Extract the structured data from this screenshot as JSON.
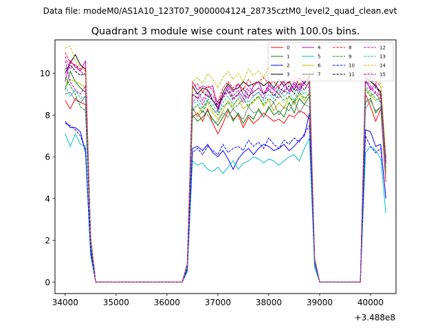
{
  "header": {
    "suptitle": "Data file: modeM0/AS1A10_123T07_9000004124_28735cztM0_level2_quad_clean.evt"
  },
  "chart_data": {
    "type": "line",
    "title": "Quadrant 3 module wise count rates with 100.0s bins.",
    "xlabel": "",
    "ylabel": "",
    "x_offset_label": "+3.488e8",
    "xlim": [
      33800,
      40500
    ],
    "ylim": [
      -0.55,
      11.6
    ],
    "xticks": [
      34000,
      35000,
      36000,
      37000,
      38000,
      39000,
      40000
    ],
    "yticks": [
      0,
      2,
      4,
      6,
      8,
      10
    ],
    "grid": false,
    "legend_position": "top-right",
    "x": [
      34000,
      34100,
      34200,
      34300,
      34400,
      34500,
      34600,
      34700,
      34800,
      34900,
      35000,
      35100,
      35200,
      35300,
      35400,
      35500,
      35600,
      35700,
      35800,
      35900,
      36000,
      36100,
      36200,
      36300,
      36400,
      36500,
      36600,
      36700,
      36800,
      36900,
      37000,
      37100,
      37200,
      37300,
      37400,
      37500,
      37600,
      37700,
      37800,
      37900,
      38000,
      38100,
      38200,
      38300,
      38400,
      38500,
      38600,
      38700,
      38800,
      38900,
      39000,
      39100,
      39200,
      39300,
      39400,
      39500,
      39600,
      39700,
      39800,
      39900,
      40000,
      40100,
      40200,
      40300
    ],
    "series": [
      {
        "name": "0",
        "color": "#ff0000",
        "dash": false,
        "values": [
          8.7,
          8.3,
          8.8,
          8.6,
          8.5,
          2.0,
          0,
          0,
          0,
          0,
          0,
          0,
          0,
          0,
          0,
          0,
          0,
          0,
          0,
          0,
          0,
          0,
          0,
          0,
          0.7,
          7.9,
          8.1,
          7.7,
          8.3,
          7.6,
          7.1,
          7.6,
          8.2,
          7.8,
          8.0,
          7.4,
          7.9,
          7.6,
          7.8,
          8.1,
          7.9,
          7.7,
          7.8,
          7.6,
          8.0,
          7.9,
          8.2,
          8.1,
          7.8,
          1.0,
          0,
          0,
          0,
          0,
          0,
          0,
          0,
          0,
          0,
          9.0,
          8.4,
          7.7,
          8.3,
          4.8
        ]
      },
      {
        "name": "1",
        "color": "#008000",
        "dash": false,
        "values": [
          9.2,
          10.1,
          9.6,
          9.3,
          9.1,
          1.9,
          0,
          0,
          0,
          0,
          0,
          0,
          0,
          0,
          0,
          0,
          0,
          0,
          0,
          0,
          0,
          0,
          0,
          0,
          0.8,
          8.0,
          7.7,
          7.9,
          8.2,
          7.8,
          7.5,
          7.9,
          8.3,
          7.7,
          8.1,
          7.6,
          8.0,
          7.8,
          8.3,
          7.9,
          8.4,
          8.0,
          8.2,
          7.9,
          8.6,
          8.1,
          8.8,
          8.5,
          8.9,
          1.0,
          0,
          0,
          0,
          0,
          0,
          0,
          0,
          0,
          0,
          8.6,
          8.8,
          8.1,
          8.4,
          5.3
        ]
      },
      {
        "name": "2",
        "color": "#0000ff",
        "dash": false,
        "values": [
          7.7,
          7.4,
          7.4,
          7.2,
          6.2,
          1.5,
          0,
          0,
          0,
          0,
          0,
          0,
          0,
          0,
          0,
          0,
          0,
          0,
          0,
          0,
          0,
          0,
          0,
          0,
          0.6,
          6.4,
          6.5,
          6.3,
          6.6,
          6.2,
          6.0,
          6.3,
          5.9,
          5.4,
          5.9,
          6.2,
          6.4,
          6.1,
          6.4,
          6.6,
          6.5,
          6.3,
          6.4,
          6.6,
          6.3,
          6.5,
          6.8,
          7.0,
          8.1,
          0.9,
          0,
          0,
          0,
          0,
          0,
          0,
          0,
          0,
          0,
          7.3,
          7.2,
          6.5,
          6.6,
          4.0
        ]
      },
      {
        "name": "3",
        "color": "#000000",
        "dash": false,
        "values": [
          10.0,
          10.5,
          10.9,
          10.4,
          10.2,
          2.1,
          0,
          0,
          0,
          0,
          0,
          0,
          0,
          0,
          0,
          0,
          0,
          0,
          0,
          0,
          0,
          0,
          0,
          0,
          0.9,
          9.4,
          9.0,
          9.3,
          9.2,
          8.7,
          8.3,
          9.1,
          9.5,
          9.2,
          9.3,
          9.6,
          9.4,
          9.5,
          9.6,
          9.4,
          9.6,
          9.3,
          9.7,
          9.4,
          9.6,
          9.2,
          9.8,
          9.5,
          9.9,
          1.1,
          0,
          0,
          0,
          0,
          0,
          0,
          0,
          0,
          0,
          9.8,
          9.6,
          9.4,
          9.1,
          5.8
        ]
      },
      {
        "name": "4",
        "color": "#bf00bf",
        "dash": false,
        "values": [
          9.6,
          10.6,
          10.3,
          10.1,
          10.6,
          2.1,
          0,
          0,
          0,
          0,
          0,
          0,
          0,
          0,
          0,
          0,
          0,
          0,
          0,
          0,
          0,
          0,
          0,
          0,
          0.9,
          9.6,
          9.2,
          9.4,
          9.3,
          9.4,
          8.2,
          8.9,
          9.4,
          9.1,
          9.5,
          9.0,
          8.8,
          9.4,
          9.6,
          9.0,
          9.4,
          9.2,
          9.4,
          9.6,
          9.1,
          9.5,
          9.2,
          9.6,
          9.7,
          1.1,
          0,
          0,
          0,
          0,
          0,
          0,
          0,
          0,
          0,
          9.7,
          9.2,
          9.5,
          8.9,
          5.7
        ]
      },
      {
        "name": "5",
        "color": "#00bfbf",
        "dash": false,
        "values": [
          7.1,
          6.5,
          7.1,
          6.6,
          6.5,
          1.3,
          0,
          0,
          0,
          0,
          0,
          0,
          0,
          0,
          0,
          0,
          0,
          0,
          0,
          0,
          0,
          0,
          0,
          0,
          0.5,
          5.8,
          5.6,
          5.7,
          5.4,
          5.3,
          5.5,
          5.2,
          5.5,
          5.8,
          5.4,
          5.7,
          5.8,
          6.0,
          5.9,
          5.7,
          5.9,
          5.8,
          5.6,
          5.8,
          6.0,
          6.1,
          5.8,
          6.4,
          6.9,
          0.7,
          0,
          0,
          0,
          0,
          0,
          0,
          0,
          0,
          0,
          6.2,
          6.5,
          6.3,
          5.9,
          3.3
        ]
      },
      {
        "name": "6",
        "color": "#bfbf00",
        "dash": false,
        "values": [
          9.3,
          9.7,
          9.6,
          9.5,
          9.3,
          2.0,
          0,
          0,
          0,
          0,
          0,
          0,
          0,
          0,
          0,
          0,
          0,
          0,
          0,
          0,
          0,
          0,
          0,
          0,
          0.8,
          8.3,
          8.0,
          8.4,
          8.6,
          8.1,
          7.8,
          8.2,
          8.7,
          8.4,
          8.8,
          8.3,
          8.5,
          8.6,
          8.9,
          8.4,
          8.7,
          8.2,
          8.6,
          8.3,
          8.9,
          8.5,
          9.0,
          8.7,
          9.1,
          1.0,
          0,
          0,
          0,
          0,
          0,
          0,
          0,
          0,
          0,
          9.3,
          9.0,
          8.7,
          8.8,
          5.5
        ]
      },
      {
        "name": "7",
        "color": "#808080",
        "dash": false,
        "values": [
          9.0,
          9.1,
          8.7,
          8.6,
          8.9,
          1.8,
          0,
          0,
          0,
          0,
          0,
          0,
          0,
          0,
          0,
          0,
          0,
          0,
          0,
          0,
          0,
          0,
          0,
          0,
          0.7,
          8.4,
          7.9,
          8.2,
          8.0,
          7.6,
          7.7,
          8.1,
          7.9,
          8.3,
          8.0,
          7.8,
          8.4,
          8.1,
          8.2,
          7.9,
          8.3,
          8.6,
          8.0,
          8.4,
          8.2,
          8.7,
          8.1,
          8.5,
          8.4,
          1.0,
          0,
          0,
          0,
          0,
          0,
          0,
          0,
          0,
          0,
          8.3,
          8.7,
          8.2,
          8.4,
          5.2
        ]
      },
      {
        "name": "8",
        "color": "#ff0000",
        "dash": true,
        "values": [
          11.0,
          10.5,
          10.4,
          10.2,
          10.3,
          2.2,
          0,
          0,
          0,
          0,
          0,
          0,
          0,
          0,
          0,
          0,
          0,
          0,
          0,
          0,
          0,
          0,
          0,
          0,
          0.9,
          9.3,
          9.5,
          9.1,
          9.4,
          9.2,
          8.6,
          9.3,
          9.6,
          9.3,
          9.5,
          9.2,
          9.7,
          9.4,
          9.6,
          9.8,
          9.5,
          9.6,
          9.3,
          9.7,
          9.5,
          9.9,
          9.4,
          9.8,
          9.6,
          1.1,
          0,
          0,
          0,
          0,
          0,
          0,
          0,
          0,
          0,
          9.9,
          10.1,
          9.6,
          9.4,
          6.0
        ]
      },
      {
        "name": "9",
        "color": "#008000",
        "dash": true,
        "values": [
          9.8,
          9.4,
          9.0,
          8.4,
          8.2,
          1.8,
          0,
          0,
          0,
          0,
          0,
          0,
          0,
          0,
          0,
          0,
          0,
          0,
          0,
          0,
          0,
          0,
          0,
          0,
          0.8,
          8.2,
          8.5,
          8.1,
          8.7,
          8.3,
          8.0,
          8.4,
          8.6,
          8.3,
          8.5,
          8.8,
          8.4,
          8.7,
          8.9,
          8.5,
          8.8,
          8.6,
          9.0,
          8.7,
          8.9,
          8.6,
          9.1,
          8.8,
          9.0,
          1.0,
          0,
          0,
          0,
          0,
          0,
          0,
          0,
          0,
          0,
          9.2,
          8.9,
          9.1,
          8.6,
          5.4
        ]
      },
      {
        "name": "10",
        "color": "#0000ff",
        "dash": true,
        "values": [
          7.6,
          7.5,
          7.3,
          7.0,
          6.3,
          1.4,
          0,
          0,
          0,
          0,
          0,
          0,
          0,
          0,
          0,
          0,
          0,
          0,
          0,
          0,
          0,
          0,
          0,
          0,
          0.6,
          6.2,
          6.4,
          6.1,
          6.5,
          6.3,
          6.1,
          6.6,
          6.2,
          6.4,
          6.5,
          6.3,
          6.8,
          6.5,
          6.7,
          6.4,
          6.9,
          6.6,
          6.4,
          6.8,
          6.6,
          6.9,
          6.7,
          7.1,
          7.5,
          0.9,
          0,
          0,
          0,
          0,
          0,
          0,
          0,
          0,
          0,
          7.0,
          6.5,
          6.2,
          6.4,
          4.1
        ]
      },
      {
        "name": "11",
        "color": "#000000",
        "dash": true,
        "values": [
          10.2,
          10.4,
          10.1,
          9.9,
          10.0,
          2.1,
          0,
          0,
          0,
          0,
          0,
          0,
          0,
          0,
          0,
          0,
          0,
          0,
          0,
          0,
          0,
          0,
          0,
          0,
          0.9,
          9.0,
          8.8,
          9.1,
          8.9,
          8.7,
          8.5,
          8.9,
          9.2,
          8.8,
          9.0,
          9.3,
          8.9,
          9.1,
          9.3,
          9.0,
          9.2,
          8.9,
          9.3,
          9.1,
          9.4,
          9.0,
          9.5,
          9.2,
          9.6,
          1.1,
          0,
          0,
          0,
          0,
          0,
          0,
          0,
          0,
          0,
          9.5,
          9.8,
          9.3,
          9.1,
          5.8
        ]
      },
      {
        "name": "12",
        "color": "#bf00bf",
        "dash": true,
        "values": [
          10.8,
          10.2,
          10.4,
          10.1,
          9.9,
          2.1,
          0,
          0,
          0,
          0,
          0,
          0,
          0,
          0,
          0,
          0,
          0,
          0,
          0,
          0,
          0,
          0,
          0,
          0,
          0.9,
          8.6,
          8.9,
          8.5,
          9.0,
          8.7,
          8.4,
          8.8,
          9.1,
          8.7,
          9.0,
          8.6,
          9.2,
          8.9,
          9.1,
          8.8,
          9.3,
          9.0,
          8.8,
          9.2,
          9.0,
          9.4,
          9.1,
          9.5,
          9.3,
          1.1,
          0,
          0,
          0,
          0,
          0,
          0,
          0,
          0,
          0,
          9.6,
          9.3,
          9.0,
          8.8,
          5.6
        ]
      },
      {
        "name": "13",
        "color": "#00bfbf",
        "dash": true,
        "values": [
          9.4,
          8.9,
          9.2,
          8.8,
          8.9,
          1.9,
          0,
          0,
          0,
          0,
          0,
          0,
          0,
          0,
          0,
          0,
          0,
          0,
          0,
          0,
          0,
          0,
          0,
          0,
          0.8,
          8.5,
          8.7,
          8.3,
          8.8,
          8.5,
          8.1,
          8.6,
          8.9,
          8.5,
          8.8,
          9.0,
          8.6,
          8.9,
          9.1,
          8.7,
          9.0,
          8.8,
          9.2,
          8.9,
          9.1,
          8.7,
          9.3,
          9.0,
          9.2,
          1.0,
          0,
          0,
          0,
          0,
          0,
          0,
          0,
          0,
          0,
          9.4,
          9.1,
          8.8,
          8.6,
          5.5
        ]
      },
      {
        "name": "14",
        "color": "#bfbf00",
        "dash": true,
        "values": [
          11.2,
          11.3,
          10.6,
          10.3,
          10.1,
          2.2,
          0,
          0,
          0,
          0,
          0,
          0,
          0,
          0,
          0,
          0,
          0,
          0,
          0,
          0,
          0,
          0,
          0,
          0,
          0.9,
          9.6,
          9.8,
          9.5,
          10.0,
          9.7,
          9.3,
          9.8,
          10.1,
          9.7,
          10.0,
          9.6,
          10.2,
          9.9,
          10.1,
          9.8,
          10.3,
          10.0,
          10.6,
          10.2,
          10.4,
          10.1,
          10.7,
          10.3,
          10.5,
          1.2,
          0,
          0,
          0,
          0,
          0,
          0,
          0,
          0,
          0,
          10.2,
          10.0,
          9.8,
          9.5,
          6.1
        ]
      },
      {
        "name": "15",
        "color": "#bf00bf",
        "dash": true,
        "values": [
          10.6,
          9.6,
          9.2,
          9.0,
          9.4,
          2.0,
          0,
          0,
          0,
          0,
          0,
          0,
          0,
          0,
          0,
          0,
          0,
          0,
          0,
          0,
          0,
          0,
          0,
          0,
          0.8,
          8.9,
          9.1,
          8.7,
          9.2,
          8.9,
          8.6,
          9.0,
          9.3,
          8.9,
          9.2,
          8.8,
          9.4,
          9.1,
          9.3,
          9.0,
          9.5,
          9.2,
          9.0,
          9.4,
          9.2,
          9.6,
          9.3,
          9.7,
          9.5,
          1.1,
          0,
          0,
          0,
          0,
          0,
          0,
          0,
          0,
          0,
          9.7,
          9.4,
          9.1,
          8.9,
          5.7
        ]
      }
    ]
  }
}
